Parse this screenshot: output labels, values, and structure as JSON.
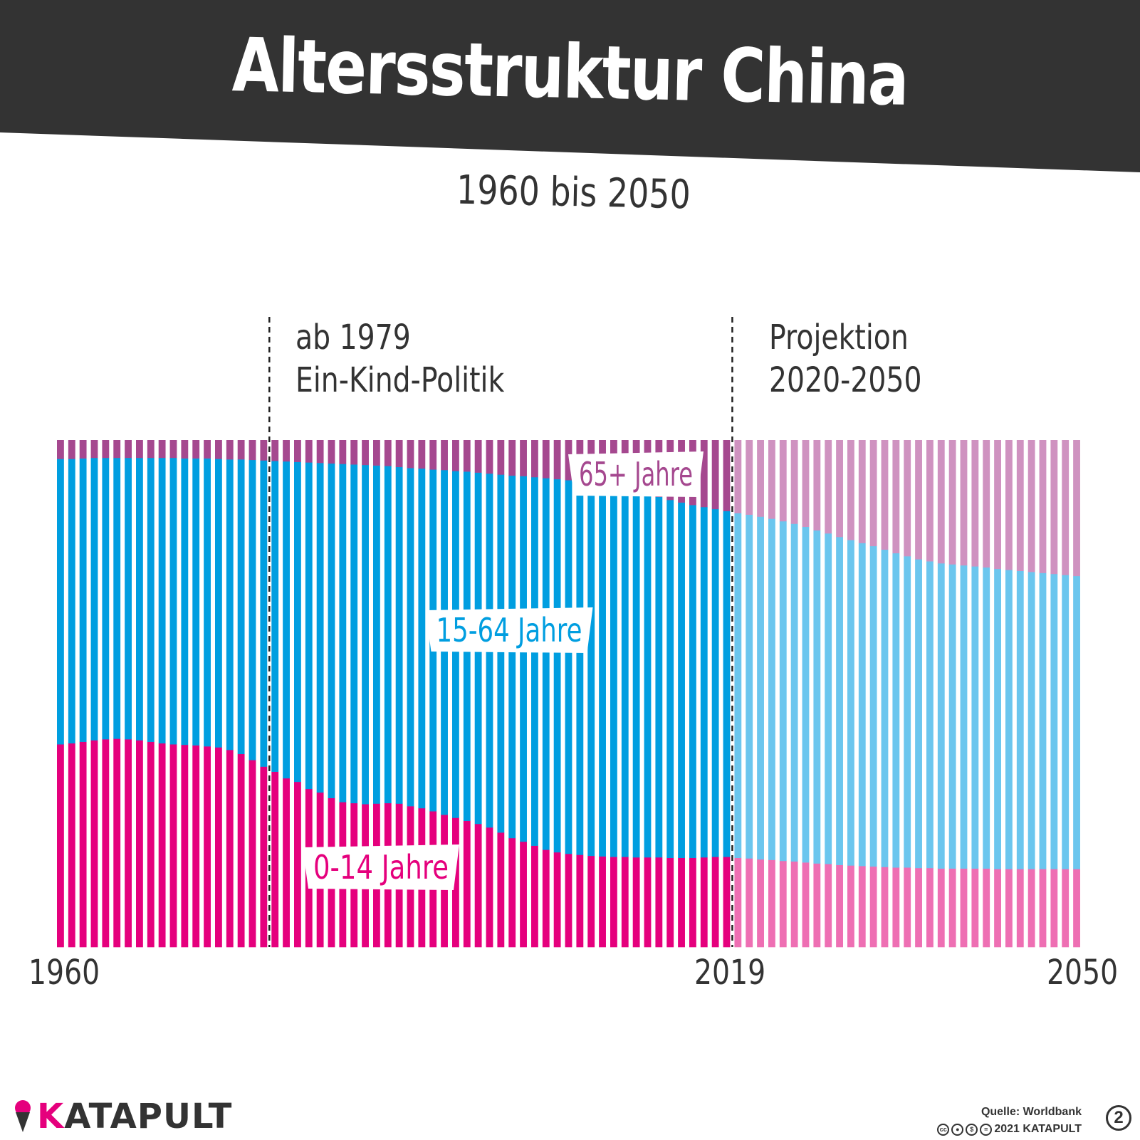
{
  "header": {
    "title": "Altersstruktur China",
    "subtitle": "1960 bis 2050",
    "band_color": "#333333"
  },
  "annotations": {
    "policy_line1": "ab 1979",
    "policy_line2": "Ein-Kind-Politik",
    "projection_line1": "Projektion",
    "projection_line2": "2020-2050"
  },
  "chart_data": {
    "type": "bar",
    "stacked": true,
    "normalized_percent": true,
    "x_start": 1960,
    "x_end": 2050,
    "x_tick_labels": [
      "1960",
      "2019",
      "2050"
    ],
    "reference_lines": [
      1978,
      2019
    ],
    "projection_from": 2020,
    "ylim": [
      0,
      100
    ],
    "grid": false,
    "series": [
      {
        "name": "0-14 Jahre",
        "color": "#e5007d",
        "projection_color": "#ee6fb3",
        "values": [
          40,
          40.2,
          40.5,
          40.8,
          41,
          41.1,
          41,
          40.8,
          40.5,
          40.2,
          40,
          39.9,
          39.8,
          39.6,
          39.4,
          38.9,
          38.1,
          36.9,
          35.6,
          34.6,
          33.3,
          32.6,
          31.2,
          30.5,
          29.4,
          28.6,
          28.4,
          28.2,
          28.3,
          28.4,
          28.3,
          27.8,
          27.4,
          26.8,
          26.1,
          25.5,
          24.9,
          24.3,
          23.6,
          22.6,
          21.5,
          20.8,
          20,
          19.2,
          18.7,
          18.4,
          18.2,
          18,
          17.9,
          17.8,
          17.8,
          17.7,
          17.7,
          17.7,
          17.6,
          17.6,
          17.6,
          17.7,
          17.8,
          17.8,
          17.6,
          17.5,
          17.3,
          17.2,
          17,
          16.9,
          16.7,
          16.5,
          16.4,
          16.2,
          16.1,
          16,
          15.9,
          15.8,
          15.7,
          15.7,
          15.6,
          15.6,
          15.5,
          15.5,
          15.5,
          15.5,
          15.5,
          15.4,
          15.4,
          15.4,
          15.4,
          15.4,
          15.4,
          15.4,
          15.4
        ]
      },
      {
        "name": "15-64 Jahre",
        "color": "#009ee0",
        "projection_color": "#6bc6ee",
        "values": [
          56.3,
          56.1,
          55.9,
          55.7,
          55.5,
          55.4,
          55.5,
          55.7,
          56,
          56.3,
          56.5,
          56.5,
          56.6,
          56.8,
          56.9,
          57.3,
          58.1,
          59.2,
          60.4,
          61.3,
          62.5,
          63.1,
          64.4,
          65,
          66,
          66.7,
          66.8,
          66.9,
          66.7,
          66.5,
          66.4,
          66.7,
          67,
          67.4,
          68,
          68.4,
          68.9,
          69.3,
          69.8,
          70.6,
          71.5,
          72.1,
          72.7,
          73.3,
          73.6,
          73.7,
          73.7,
          73.5,
          73.2,
          72.8,
          72.4,
          72,
          71.6,
          71.1,
          70.6,
          70.1,
          69.6,
          69.1,
          68.6,
          68.2,
          68,
          67.8,
          67.6,
          67.3,
          67,
          66.6,
          66.2,
          65.7,
          65.2,
          64.7,
          64.2,
          63.7,
          63.2,
          62.6,
          62,
          61.4,
          60.9,
          60.5,
          60.2,
          60,
          59.8,
          59.6,
          59.4,
          59.2,
          59,
          58.8,
          58.6,
          58.4,
          58.2,
          58,
          57.8
        ]
      },
      {
        "name": "65+ Jahre",
        "color": "#a5488f",
        "projection_color": "#cf92c0",
        "values": [
          3.7,
          3.7,
          3.6,
          3.5,
          3.5,
          3.5,
          3.5,
          3.5,
          3.5,
          3.5,
          3.5,
          3.6,
          3.6,
          3.6,
          3.7,
          3.8,
          3.8,
          3.9,
          4,
          4.1,
          4.2,
          4.3,
          4.4,
          4.5,
          4.6,
          4.7,
          4.8,
          4.9,
          5,
          5.1,
          5.3,
          5.5,
          5.6,
          5.8,
          5.9,
          6.1,
          6.2,
          6.4,
          6.6,
          6.8,
          7,
          7.1,
          7.3,
          7.5,
          7.7,
          7.9,
          8.1,
          8.5,
          8.9,
          9.4,
          9.8,
          10.3,
          10.7,
          11.2,
          11.8,
          12.3,
          12.8,
          13.2,
          13.6,
          14,
          14.4,
          14.7,
          15.1,
          15.5,
          16,
          16.5,
          17.1,
          17.8,
          18.4,
          19.1,
          19.7,
          20.3,
          20.9,
          21.6,
          22.3,
          22.9,
          23.5,
          23.9,
          24.3,
          24.5,
          24.7,
          24.9,
          25.1,
          25.4,
          25.6,
          25.8,
          26,
          26.2,
          26.4,
          26.6,
          26.8
        ]
      }
    ]
  },
  "footer": {
    "logo_k": "K",
    "logo_rest": "ATAPULT",
    "source": "Quelle: Worldbank",
    "copyright": "2021 KATAPULT",
    "cc_icons": [
      "cc-icon",
      "by-icon",
      "nc-icon",
      "nd-icon"
    ],
    "badge": "2"
  }
}
